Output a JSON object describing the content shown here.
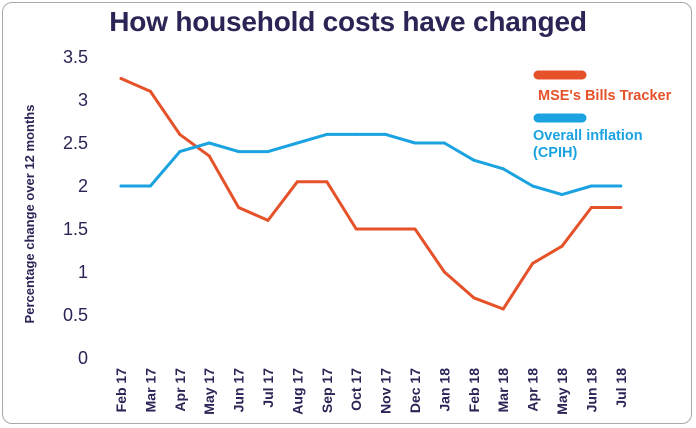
{
  "chart_data": {
    "type": "line",
    "title": "How household costs have changed",
    "ylabel": "Percentage change over 12 months",
    "xlabel": "",
    "ylim": [
      0,
      3.5
    ],
    "yticks": [
      0,
      0.5,
      1,
      1.5,
      2,
      2.5,
      3,
      3.5
    ],
    "ytick_labels": [
      "0",
      "0.5",
      "1",
      "1.5",
      "2",
      "2.5",
      "3",
      "3.5"
    ],
    "categories": [
      "Feb 17",
      "Mar 17",
      "Apr 17",
      "May 17",
      "Jun 17",
      "Jul 17",
      "Aug 17",
      "Sep 17",
      "Oct 17",
      "Nov 17",
      "Dec 17",
      "Jan 18",
      "Feb 18",
      "Mar 18",
      "Apr 18",
      "May 18",
      "Jun 18",
      "Jul 18"
    ],
    "series": [
      {
        "name": "MSE's Bills Tracker",
        "color": "#e5522a",
        "values": [
          3.25,
          3.1,
          2.6,
          2.35,
          1.75,
          1.6,
          2.05,
          2.05,
          1.5,
          1.5,
          1.5,
          1.0,
          0.7,
          0.57,
          1.1,
          1.3,
          1.75,
          1.75
        ]
      },
      {
        "name": "Overall inflation (CPIH)",
        "color": "#1aa3e0",
        "values": [
          2.0,
          2.0,
          2.4,
          2.5,
          2.4,
          2.4,
          2.5,
          2.6,
          2.6,
          2.6,
          2.5,
          2.5,
          2.3,
          2.2,
          2.0,
          1.9,
          2.0,
          2.0
        ]
      }
    ],
    "legend": {
      "position": "top-right",
      "entries": [
        {
          "label": "MSE's Bills Tracker",
          "color": "#e5522a"
        },
        {
          "label_lines": [
            "Overall inflation",
            "(CPIH)"
          ],
          "color": "#1aa3e0"
        }
      ]
    },
    "grid": false
  }
}
